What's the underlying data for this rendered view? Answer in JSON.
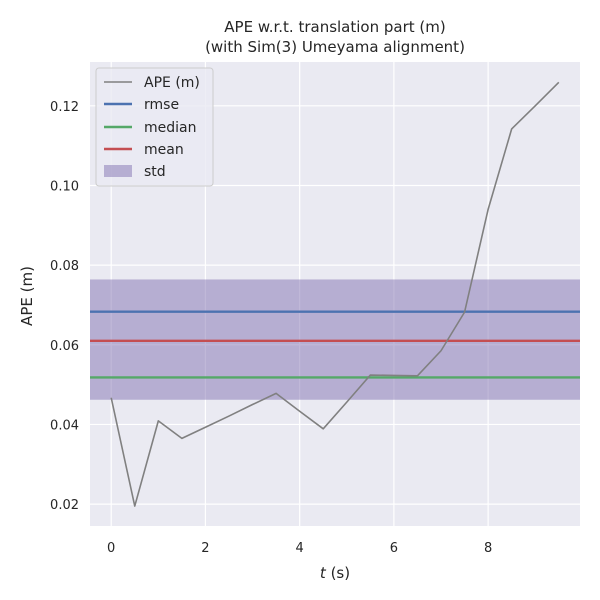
{
  "chart_data": {
    "type": "line",
    "title_lines": [
      "APE w.r.t. translation part (m)",
      "(with Sim(3) Umeyama alignment)"
    ],
    "xlabel_var": "t",
    "xlabel_unit": " (s)",
    "ylabel": "APE (m)",
    "xlim": [
      -0.45,
      9.95
    ],
    "ylim": [
      0.0145,
      0.131
    ],
    "x_ticks": [
      0,
      2,
      4,
      6,
      8
    ],
    "y_ticks": [
      0.02,
      0.04,
      0.06,
      0.08,
      0.1,
      0.12
    ],
    "x_tick_labels": [
      "0",
      "2",
      "4",
      "6",
      "8"
    ],
    "y_tick_labels": [
      "0.02",
      "0.04",
      "0.06",
      "0.08",
      "0.10",
      "0.12"
    ],
    "grid": true,
    "legend_placement": "top-left",
    "series": [
      {
        "name": "APE (m)",
        "color": "#808080",
        "x": [
          0,
          0.5,
          1.0,
          1.5,
          2.0,
          2.5,
          3.0,
          3.5,
          4.0,
          4.5,
          5.0,
          5.5,
          6.0,
          6.5,
          7.0,
          7.5,
          8.0,
          8.5,
          9.0,
          9.5
        ],
        "y": [
          0.0467,
          0.0195,
          0.0409,
          0.0365,
          0.0393,
          0.0421,
          0.045,
          0.0478,
          0.0433,
          0.0389,
          0.0456,
          0.0524,
          0.0523,
          0.0522,
          0.0585,
          0.0682,
          0.094,
          0.1142,
          0.12,
          0.1259
        ]
      }
    ],
    "hlines": [
      {
        "name": "rmse",
        "value": 0.0683,
        "color": "#4c72b0"
      },
      {
        "name": "median",
        "value": 0.0518,
        "color": "#55a868"
      },
      {
        "name": "mean",
        "value": 0.061,
        "color": "#c44e52"
      }
    ],
    "band": {
      "name": "std",
      "y0": 0.0462,
      "y1": 0.0764,
      "color": "#8172b2"
    }
  }
}
